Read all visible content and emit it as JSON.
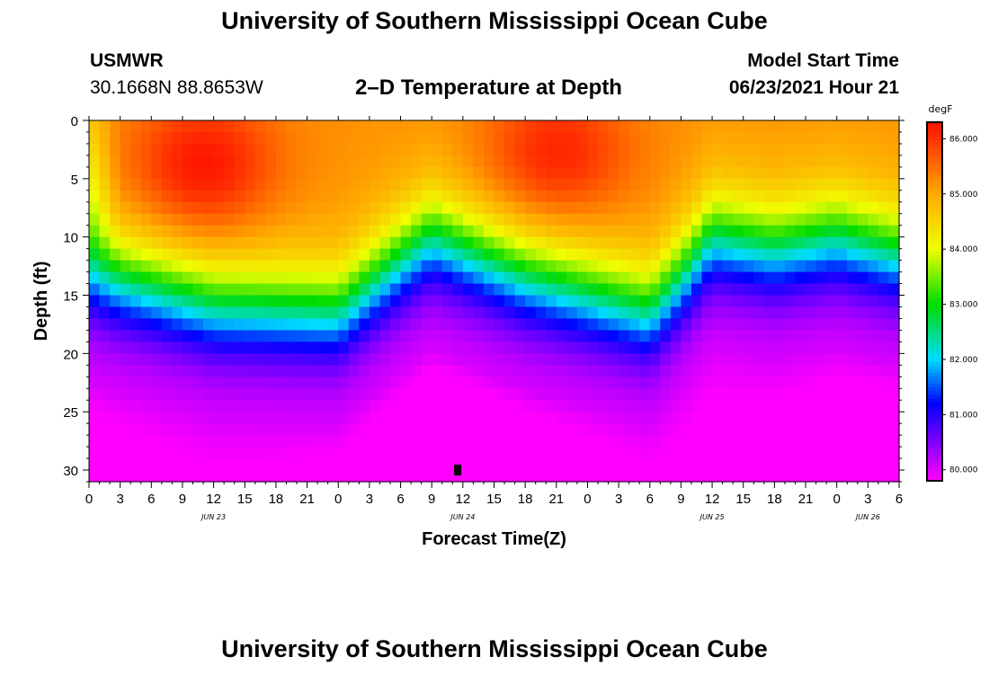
{
  "header": {
    "title": "University of Southern Mississippi Ocean Cube",
    "footer_title": "University of Southern Mississippi Ocean Cube",
    "station": "USMWR",
    "coords": "30.1668N  88.8653W",
    "subtitle": "2–D Temperature at Depth",
    "model_start_label": "Model Start Time",
    "model_start_value": "06/23/2021 Hour 21"
  },
  "chart_data": {
    "type": "heatmap",
    "title": "2–D Temperature at Depth",
    "xlabel": "Forecast Time(Z)",
    "ylabel": "Depth (ft)",
    "x_ticks": [
      "0",
      "3",
      "6",
      "9",
      "12",
      "15",
      "18",
      "21",
      "0",
      "3",
      "6",
      "9",
      "12",
      "15",
      "18",
      "21",
      "0",
      "3",
      "6",
      "9",
      "12",
      "15",
      "18",
      "21",
      "0",
      "3",
      "6"
    ],
    "x_range_hours": [
      0,
      78
    ],
    "x_tick_step_hours": 3,
    "date_labels": [
      {
        "label": "JUN 23",
        "hour": 12
      },
      {
        "label": "JUN 24",
        "hour": 36
      },
      {
        "label": "JUN 25",
        "hour": 60
      },
      {
        "label": "JUN 26",
        "hour": 75
      }
    ],
    "y_ticks": [
      "0",
      "5",
      "10",
      "15",
      "20",
      "25",
      "30"
    ],
    "ylim": [
      0,
      31
    ],
    "colorbar": {
      "unit": "degF",
      "range": [
        79.8,
        86.3
      ],
      "labels": [
        "86.000",
        "85.000",
        "84.000",
        "83.000",
        "82.000",
        "81.000",
        "80.000"
      ],
      "label_values": [
        86,
        85,
        84,
        83,
        82,
        81,
        80
      ]
    },
    "thermocline_depth_by_hour": [
      {
        "hour": 0,
        "depth_ft": 16.5
      },
      {
        "hour": 12,
        "depth_ft": 19.5
      },
      {
        "hour": 24,
        "depth_ft": 20.0
      },
      {
        "hour": 30,
        "depth_ft": 15.5
      },
      {
        "hour": 33,
        "depth_ft": 13.5
      },
      {
        "hour": 42,
        "depth_ft": 17.0
      },
      {
        "hour": 54,
        "depth_ft": 20.0
      },
      {
        "hour": 57,
        "depth_ft": 17.0
      },
      {
        "hour": 60,
        "depth_ft": 13.5
      },
      {
        "hour": 66,
        "depth_ft": 14.5
      },
      {
        "hour": 72,
        "depth_ft": 13.5
      },
      {
        "hour": 78,
        "depth_ft": 15.0
      }
    ],
    "warm_cores": [
      {
        "hour": 11,
        "depth_ft": 4,
        "temp_f": 86.0
      },
      {
        "hour": 45,
        "depth_ft": 3,
        "temp_f": 85.9
      }
    ],
    "surface_temp_f": 85.2,
    "bottom_temp_f": 79.9,
    "marker": {
      "hour": 35.5,
      "depth_ft": 30
    }
  }
}
